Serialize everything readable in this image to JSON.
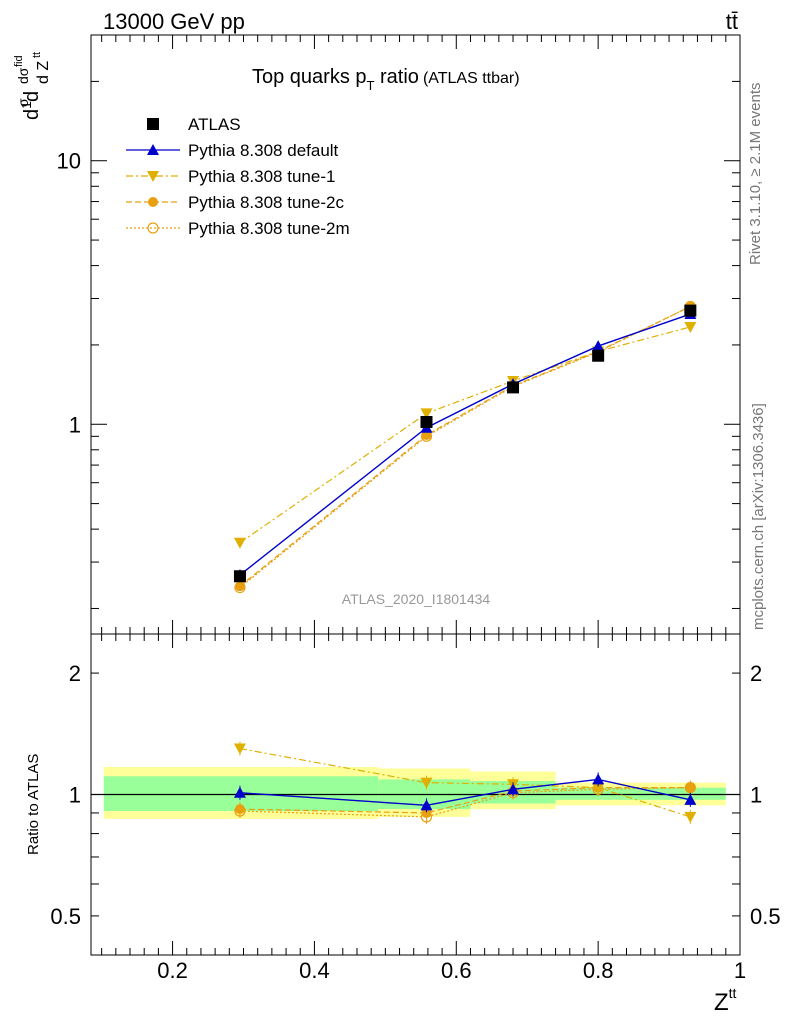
{
  "header": {
    "beam": "13000 GeV pp",
    "process": "tt̄",
    "side_top": "Rivet 3.1.10, ≥ 2.1M events",
    "side_bottom": "mcplots.cern.ch [arXiv:1306.3436]",
    "analysis_tag": "ATLAS_2020_I1801434"
  },
  "chart_data": [
    {
      "type": "line",
      "title": "Top quarks p_T ratio",
      "title_main": "Top quarks p",
      "title_sub": "T",
      "title_rest": " ratio",
      "title_small": "(ATLAS ttbar)",
      "ylabel": "1/σ dσ^fid / d Z^tt",
      "yscale": "log",
      "ylim": [
        0.16,
        30
      ],
      "xlim": [
        0.085,
        1.0
      ],
      "ytick_labels": [
        "1",
        "10"
      ],
      "legend_position": "top-left",
      "x": [
        0.295,
        0.558,
        0.68,
        0.8,
        0.93
      ],
      "data": {
        "name": "ATLAS",
        "color": "#000000",
        "values": [
          0.265,
          1.02,
          1.38,
          1.82,
          2.7
        ],
        "errors": [
          0.012,
          0.04,
          0.03,
          0.05,
          0.08
        ]
      },
      "series": [
        {
          "name": "Pythia 8.308 default",
          "color": "#0000cc",
          "dash": "solid",
          "marker": "triangle-up",
          "values": [
            0.268,
            0.97,
            1.42,
            1.98,
            2.62
          ]
        },
        {
          "name": "Pythia 8.308 tune-1",
          "color": "#e0b000",
          "dash": "dashdot",
          "marker": "triangle-down",
          "values": [
            0.355,
            1.1,
            1.46,
            1.89,
            2.34
          ]
        },
        {
          "name": "Pythia 8.308 tune-2c",
          "color": "#e8a010",
          "dash": "dashed",
          "marker": "circle",
          "values": [
            0.243,
            0.91,
            1.4,
            1.89,
            2.8
          ]
        },
        {
          "name": "Pythia 8.308 tune-2m",
          "color": "#e8a010",
          "dash": "dotted",
          "marker": "circle-open",
          "values": [
            0.24,
            0.9,
            1.39,
            1.88,
            2.8
          ]
        }
      ]
    },
    {
      "type": "line",
      "ylabel": "Ratio to ATLAS",
      "xlabel": "Z^tt",
      "xlabel_main": "Z",
      "xlabel_sup": "tt",
      "yscale": "log",
      "ylim": [
        0.4,
        2.5
      ],
      "xlim": [
        0.085,
        1.0
      ],
      "ytick_labels": [
        "0.5",
        "1",
        "2"
      ],
      "xtick_labels": [
        "0.2",
        "0.4",
        "0.6",
        "0.8",
        "1"
      ],
      "bands": {
        "edges": [
          0.103,
          0.49,
          0.62,
          0.74,
          0.98
        ],
        "outer": [
          [
            0.87,
            1.17
          ],
          [
            0.88,
            1.16
          ],
          [
            0.92,
            1.14
          ],
          [
            0.94,
            1.07
          ]
        ],
        "inner": [
          [
            0.91,
            1.11
          ],
          [
            0.92,
            1.09
          ],
          [
            0.95,
            1.08
          ],
          [
            0.97,
            1.04
          ]
        ]
      },
      "series": [
        {
          "name": "Pythia 8.308 default",
          "color": "#0000cc",
          "dash": "solid",
          "marker": "triangle-up",
          "values": [
            1.01,
            0.94,
            1.03,
            1.09,
            0.97
          ]
        },
        {
          "name": "Pythia 8.308 tune-1",
          "color": "#e0b000",
          "dash": "dashdot",
          "marker": "triangle-down",
          "values": [
            1.3,
            1.07,
            1.06,
            1.04,
            0.88
          ]
        },
        {
          "name": "Pythia 8.308 tune-2c",
          "color": "#e8a010",
          "dash": "dashed",
          "marker": "circle",
          "values": [
            0.92,
            0.9,
            1.02,
            1.04,
            1.04
          ]
        },
        {
          "name": "Pythia 8.308 tune-2m",
          "color": "#e8a010",
          "dash": "dotted",
          "marker": "circle-open",
          "values": [
            0.91,
            0.88,
            1.01,
            1.03,
            1.04
          ]
        }
      ]
    }
  ]
}
